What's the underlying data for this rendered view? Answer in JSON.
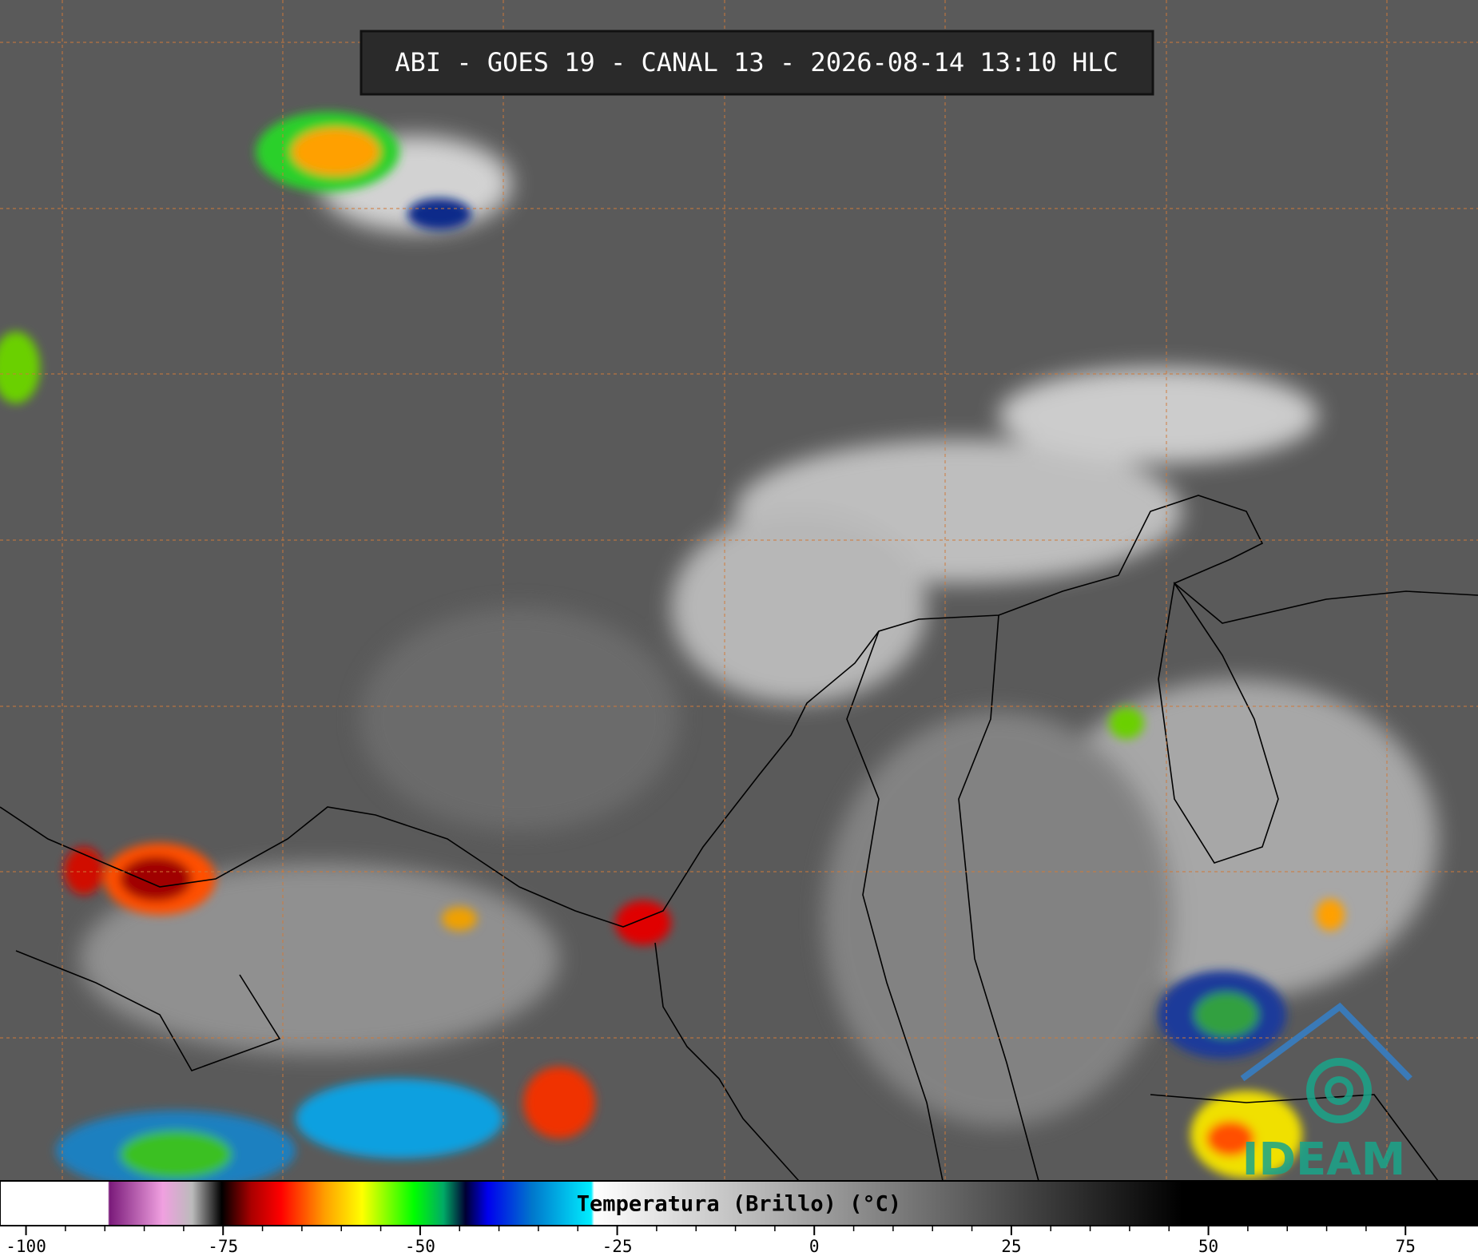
{
  "header": {
    "title": "ABI - GOES 19 - CANAL 13 - 2026-08-14 13:10 HLC"
  },
  "colorbar": {
    "label": "Temperatura (Brillo) (°C)",
    "lim": [
      -103.3,
      84.2
    ],
    "ticks": [
      -100,
      -75,
      -50,
      -25,
      0,
      25,
      50,
      75
    ]
  },
  "logo": {
    "text": "IDEAM"
  }
}
